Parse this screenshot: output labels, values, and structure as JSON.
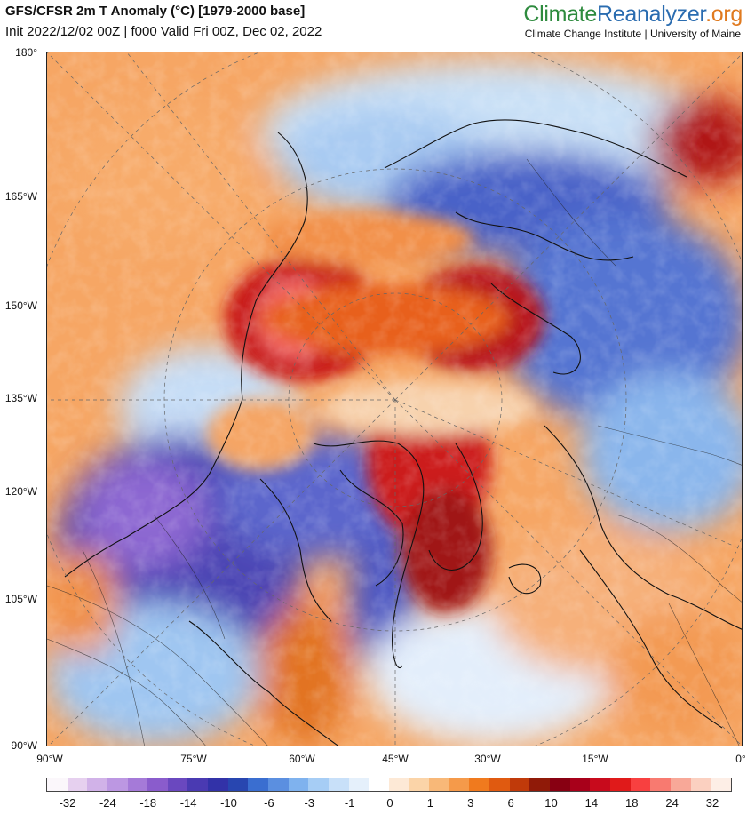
{
  "header": {
    "title": "GFS/CFSR 2m T Anomaly (°C) [1979-2000 base]",
    "subtitle": "Init 2022/12/02 00Z | f000 Valid Fri 00Z, Dec 02, 2022",
    "brand_part1": "Climate",
    "brand_part2": "Reanalyzer",
    "brand_part3": ".org",
    "organization": "Climate Change Institute | University of Maine"
  },
  "map": {
    "left_labels": [
      "180°",
      "165°W",
      "150°W",
      "135°W",
      "120°W",
      "105°W",
      "90°W"
    ],
    "bottom_labels": [
      "90°W",
      "75°W",
      "60°W",
      "45°W",
      "30°W",
      "15°W",
      "0°"
    ]
  },
  "colorbar": {
    "colors": [
      "#fbf7fb",
      "#e6d0ef",
      "#d1b2e8",
      "#bc97e2",
      "#a57ad8",
      "#8a5ccc",
      "#6a48bf",
      "#4a3ab2",
      "#3232a8",
      "#2846b0",
      "#3a6ed0",
      "#5b8fe0",
      "#7fb2ee",
      "#a6cdf5",
      "#c8e0f9",
      "#e5f0fb",
      "#ffffff",
      "#fde9d6",
      "#fbd4a8",
      "#f8b878",
      "#f59a4a",
      "#f07a1e",
      "#e05a10",
      "#c03a0a",
      "#901a08",
      "#880012",
      "#a8001a",
      "#c80a1c",
      "#e01a1a",
      "#f84040",
      "#f87a70",
      "#f8a898",
      "#fbd0c0",
      "#fdeee6"
    ],
    "labels": [
      "-32",
      "-24",
      "-18",
      "-14",
      "-10",
      "-6",
      "-3",
      "-1",
      "0",
      "1",
      "3",
      "6",
      "10",
      "14",
      "18",
      "24",
      "32"
    ]
  }
}
